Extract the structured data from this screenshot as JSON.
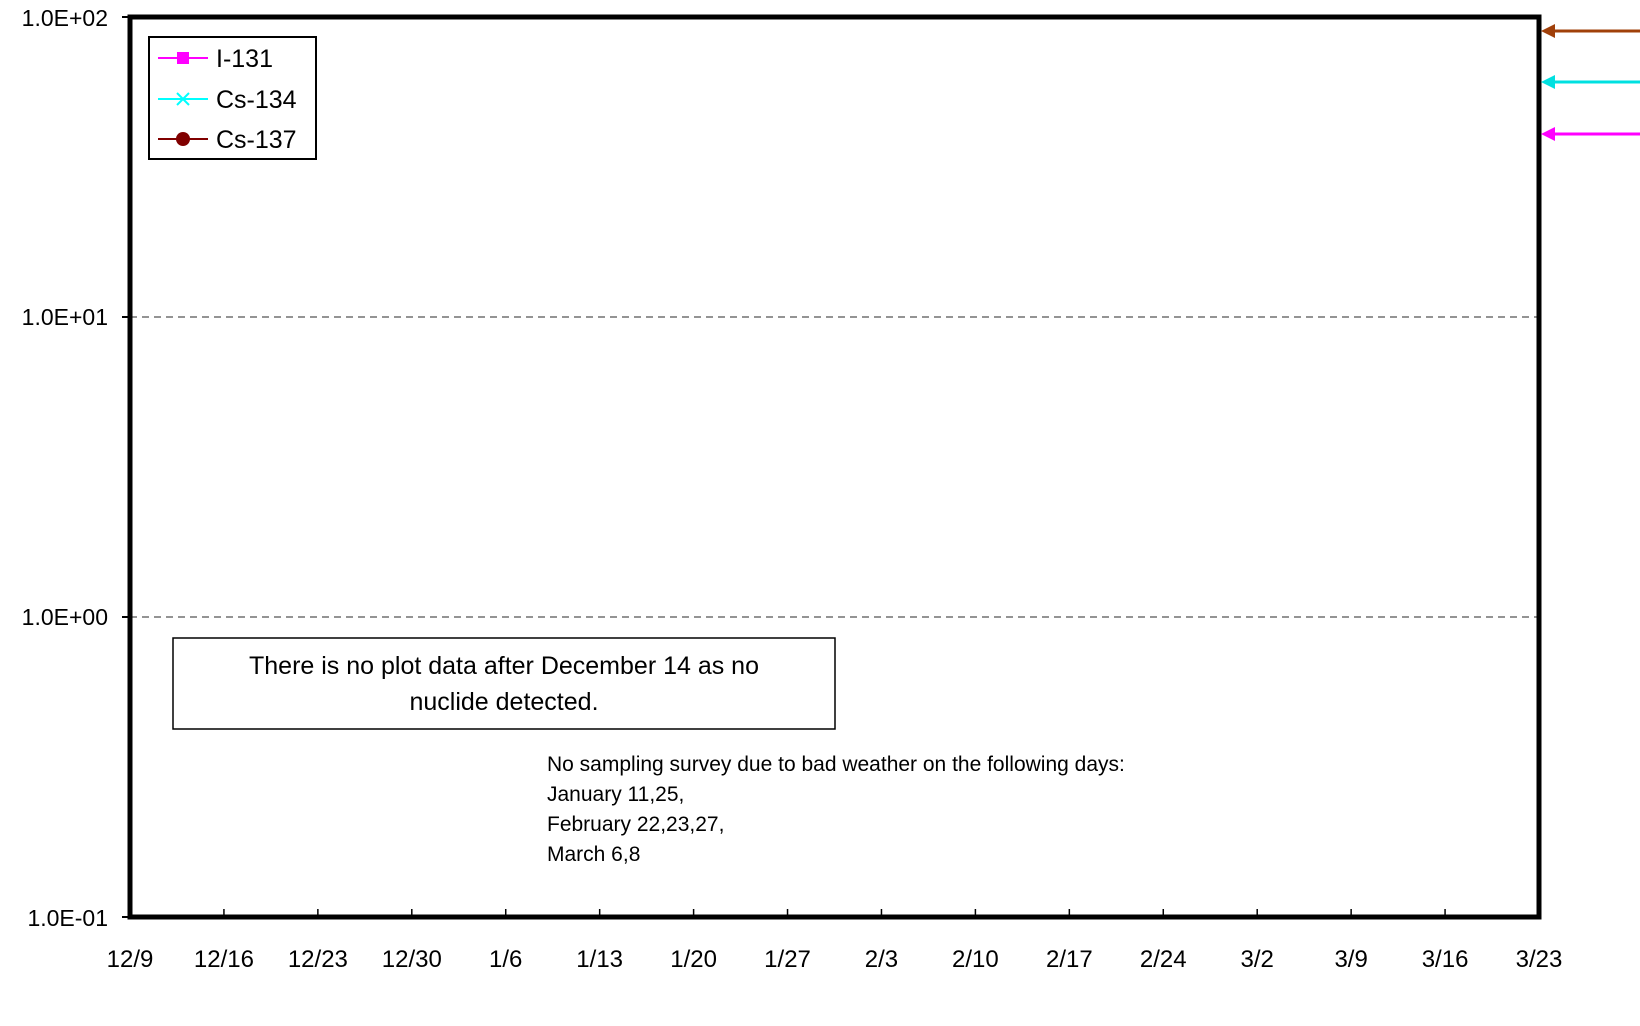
{
  "chart_data": {
    "type": "line",
    "y_scale": "log",
    "ylim": [
      0.1,
      100
    ],
    "y_ticks": [
      "1.0E-01",
      "1.0E+00",
      "1.0E+01",
      "1.0E+02"
    ],
    "x_ticks": [
      "12/9",
      "12/16",
      "12/23",
      "12/30",
      "1/6",
      "1/13",
      "1/20",
      "1/27",
      "2/3",
      "2/10",
      "2/17",
      "2/24",
      "3/2",
      "3/9",
      "3/16",
      "3/23"
    ],
    "grid": "horizontal dashed at 1.0E+00 and 1.0E+01",
    "legend_position": "top-left",
    "series": [
      {
        "name": "I-131",
        "color": "#ff00ff",
        "marker": "square",
        "values": []
      },
      {
        "name": "Cs-134",
        "color": "#00ffff",
        "marker": "x",
        "values": []
      },
      {
        "name": "Cs-137",
        "color": "#800000",
        "marker": "circle",
        "values": []
      }
    ],
    "offscale_arrows": [
      {
        "series": "Cs-137",
        "color": "#a0400a"
      },
      {
        "series": "Cs-134",
        "color": "#00e0e0"
      },
      {
        "series": "I-131",
        "color": "#ff00ff"
      }
    ],
    "annotations": {
      "no_data_box": [
        "There is no plot data after December 14 as no",
        "nuclide detected."
      ],
      "weather_note": [
        "No sampling survey due to bad weather on the following days:",
        "January 11,25,",
        "February 22,23,27,",
        "March 6,8"
      ]
    }
  }
}
